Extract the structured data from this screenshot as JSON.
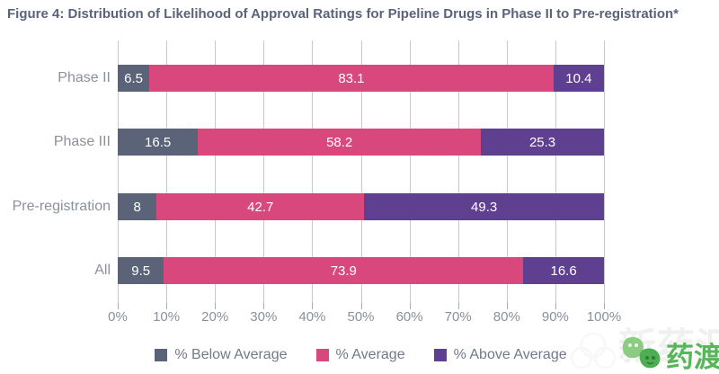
{
  "figure": {
    "title": "Figure 4: Distribution of Likelihood of Approval Ratings for Pipeline Drugs in Phase II to Pre-registration*"
  },
  "chart_data": {
    "type": "bar",
    "orientation": "horizontal",
    "stacked": true,
    "title": "Figure 4: Distribution of Likelihood of Approval Ratings for Pipeline Drugs in Phase II to Pre-registration*",
    "categories": [
      "Phase II",
      "Phase III",
      "Pre-registration",
      "All"
    ],
    "series": [
      {
        "name": "% Below Average",
        "color": "#5a6378",
        "values": [
          6.5,
          16.5,
          8,
          9.5
        ]
      },
      {
        "name": "% Average",
        "color": "#d9487c",
        "values": [
          83.1,
          58.2,
          42.7,
          73.9
        ]
      },
      {
        "name": "% Above Average",
        "color": "#5f3f90",
        "values": [
          10.4,
          25.3,
          49.3,
          16.6
        ]
      }
    ],
    "x_ticks": [
      "0%",
      "10%",
      "20%",
      "30%",
      "40%",
      "50%",
      "60%",
      "70%",
      "80%",
      "90%",
      "100%"
    ],
    "xlim": [
      0,
      100
    ],
    "xlabel": "",
    "ylabel": "",
    "grid": true,
    "value_labels": "inside, white text",
    "legend_position": "bottom"
  },
  "colors": {
    "below_average": "#5a6378",
    "average": "#d9487c",
    "above_average": "#5f3f90",
    "gridline": "#c7c9cd",
    "title_text": "#59637a",
    "axis_text": "#8a909a",
    "category_text": "#8b909b",
    "legend_text": "#71798a",
    "watermark_green": "#58b55a"
  },
  "watermark": {
    "logo_icon": "yaodu-leaf-faces-logo",
    "text": "药渡",
    "faint_text": "新药汇"
  }
}
